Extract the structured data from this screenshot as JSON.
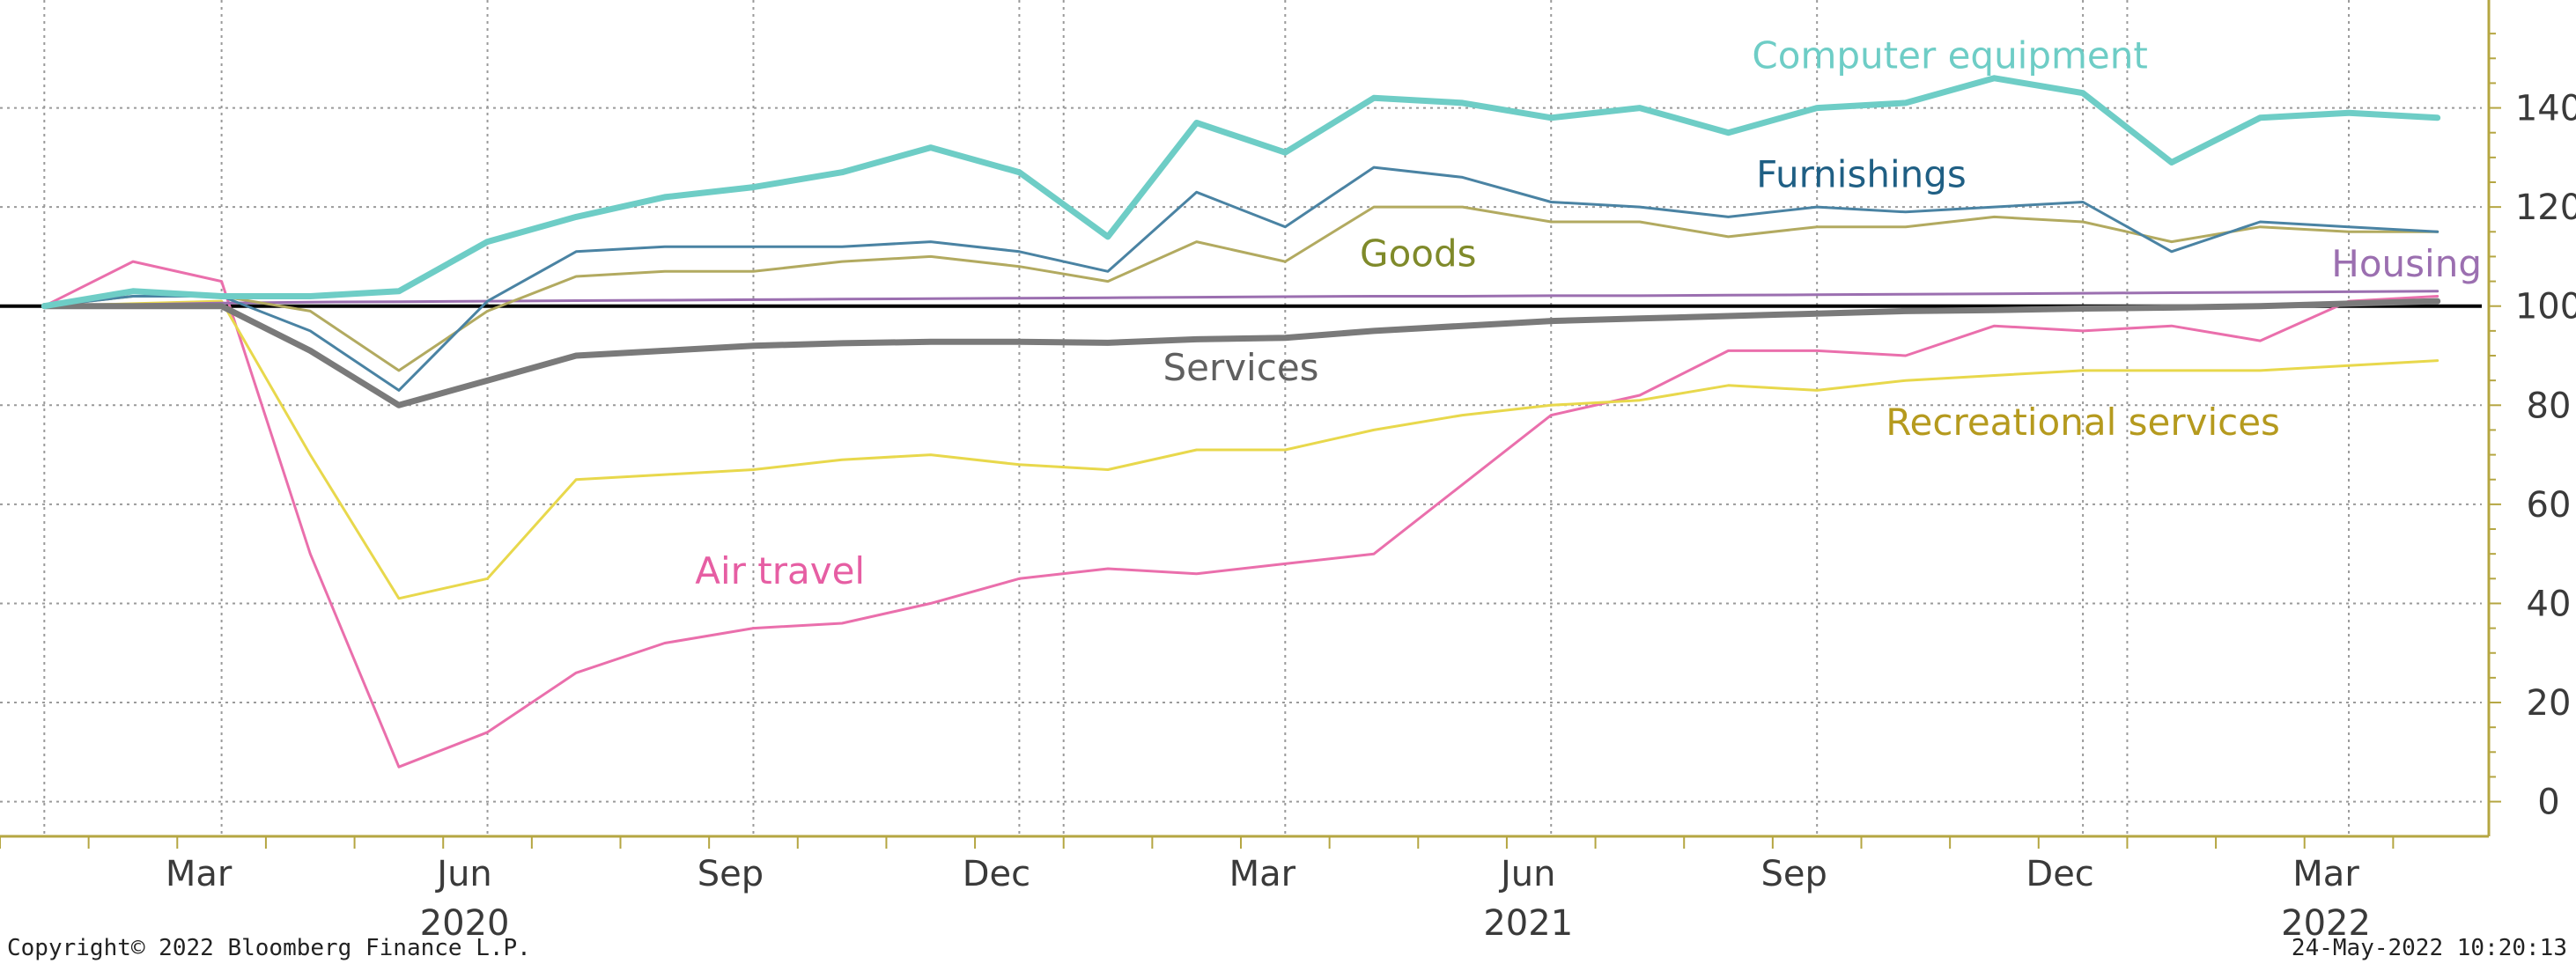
{
  "chart_data": {
    "type": "line",
    "title": "",
    "xlabel": "",
    "ylabel": "",
    "ylim": [
      -7,
      160
    ],
    "y_axis_side": "right",
    "grid": true,
    "x_ticks": [
      {
        "x": 2,
        "label": "Mar"
      },
      {
        "x": 5,
        "label": "Jun"
      },
      {
        "x": 8,
        "label": "Sep"
      },
      {
        "x": 11,
        "label": "Dec"
      },
      {
        "x": 14,
        "label": "Mar"
      },
      {
        "x": 17,
        "label": "Jun"
      },
      {
        "x": 20,
        "label": "Sep"
      },
      {
        "x": 23,
        "label": "Dec"
      },
      {
        "x": 26,
        "label": "Mar"
      }
    ],
    "year_labels": [
      {
        "x": 5,
        "label": "2020"
      },
      {
        "x": 17,
        "label": "2021"
      },
      {
        "x": 26,
        "label": "2022"
      }
    ],
    "y_ticks": [
      0,
      20,
      40,
      60,
      80,
      100,
      120,
      140
    ],
    "x_start": -0.5,
    "x_end": 27.5,
    "reference_line": 100,
    "series": [
      {
        "name": "Computer equipment",
        "color": "#6ecdc6",
        "width": 7,
        "values": [
          100,
          103,
          102,
          102,
          103,
          113,
          118,
          122,
          124,
          127,
          132,
          127,
          114,
          137,
          131,
          142,
          141,
          138,
          140,
          135,
          140,
          141,
          146,
          143,
          129,
          138,
          139,
          138
        ]
      },
      {
        "name": "Furnishings",
        "color": "#4a83a3",
        "width": 3,
        "values": [
          100,
          102,
          102,
          95,
          83,
          101,
          111,
          112,
          112,
          112,
          113,
          111,
          107,
          123,
          116,
          128,
          126,
          121,
          120,
          118,
          120,
          119,
          120,
          121,
          111,
          117,
          116,
          115
        ]
      },
      {
        "name": "Goods",
        "color": "#b2aa60",
        "width": 3,
        "values": [
          100,
          102,
          102,
          99,
          87,
          99,
          106,
          107,
          107,
          109,
          110,
          108,
          105,
          113,
          109,
          120,
          120,
          117,
          117,
          114,
          116,
          116,
          118,
          117,
          113,
          116,
          115,
          115
        ]
      },
      {
        "name": "Housing",
        "color": "#9b6fb0",
        "width": 3,
        "values": [
          100,
          100.3,
          100.6,
          100.8,
          100.9,
          101,
          101.1,
          101.2,
          101.3,
          101.4,
          101.5,
          101.6,
          101.7,
          101.8,
          101.9,
          102,
          102,
          102.1,
          102.1,
          102.2,
          102.3,
          102.4,
          102.5,
          102.6,
          102.7,
          102.8,
          102.9,
          103
        ]
      },
      {
        "name": "Services",
        "color": "#7a7a7a",
        "width": 7,
        "values": [
          100,
          100,
          100,
          91,
          80,
          85,
          90,
          91,
          92,
          92.5,
          92.8,
          92.8,
          92.6,
          93.3,
          93.6,
          95,
          96,
          97,
          97.5,
          98,
          98.5,
          99,
          99.2,
          99.5,
          99.7,
          100,
          100.5,
          101
        ]
      },
      {
        "name": "Recreational services",
        "color": "#e8d84c",
        "width": 3,
        "values": [
          100,
          100.5,
          101,
          70,
          41,
          45,
          65,
          66,
          67,
          69,
          70,
          68,
          67,
          71,
          71,
          75,
          78,
          80,
          81,
          84,
          83,
          85,
          86,
          87,
          87,
          87,
          88,
          89
        ]
      },
      {
        "name": "Air travel",
        "color": "#ea6fac",
        "width": 3,
        "values": [
          100,
          109,
          105,
          50,
          7,
          14,
          26,
          32,
          35,
          36,
          40,
          45,
          47,
          46,
          48,
          50,
          64,
          78,
          82,
          91,
          91,
          90,
          96,
          95,
          96,
          93,
          101,
          102
        ]
      }
    ],
    "annotations": [
      {
        "series": "Computer equipment",
        "text": "Computer equipment",
        "color": "#6ecdc6"
      },
      {
        "series": "Furnishings",
        "text": "Furnishings",
        "color": "#1f5f84"
      },
      {
        "series": "Goods",
        "text": "Goods",
        "color": "#7f8a2a"
      },
      {
        "series": "Housing",
        "text": "Housing",
        "color": "#9b6fb0"
      },
      {
        "series": "Services",
        "text": "Services",
        "color": "#606060"
      },
      {
        "series": "Recreational services",
        "text": "Recreational services",
        "color": "#b59a1e"
      },
      {
        "series": "Air travel",
        "text": "Air travel",
        "color": "#e65ea3"
      }
    ]
  },
  "footer": {
    "copyright": "Copyright© 2022 Bloomberg Finance L.P.",
    "timestamp": "24-May-2022 10:20:13"
  },
  "colors": {
    "axis": "#b5a642",
    "grid": "#9a9a9a",
    "reference_line": "#000000"
  }
}
